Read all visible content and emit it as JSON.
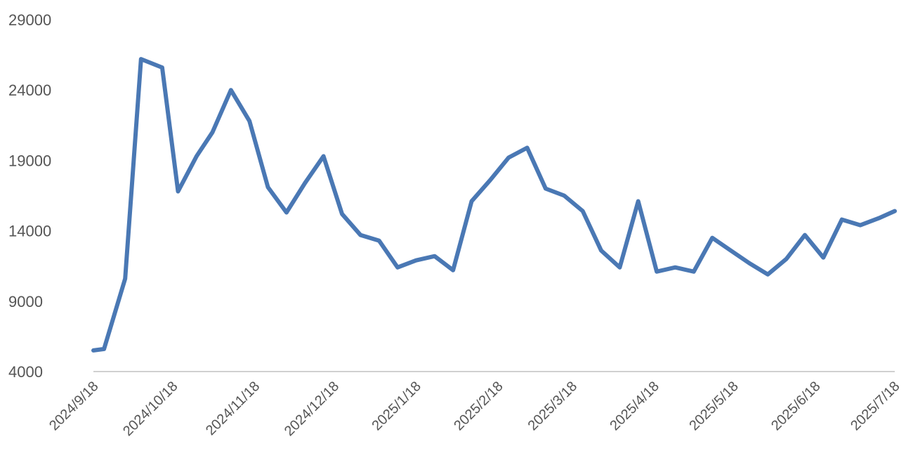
{
  "chart_data": {
    "type": "line",
    "title": "",
    "xlabel": "",
    "ylabel": "",
    "ylim": [
      4000,
      29000
    ],
    "yticks": [
      "4000",
      "9000",
      "14000",
      "19000",
      "24000",
      "29000"
    ],
    "xtick_labels": [
      "2024/9/18",
      "2024/10/18",
      "2024/11/18",
      "2024/12/18",
      "2025/1/18",
      "2025/2/18",
      "2025/3/18",
      "2025/4/18",
      "2025/5/18",
      "2025/6/18",
      "2025/7/18"
    ],
    "grid": false,
    "legend": "none",
    "line_color": "#4a78b4",
    "axis_color": "#d0d0d0",
    "series": [
      {
        "x": [
          "2024/9/18",
          "2024/9/22",
          "2024/9/30",
          "2024/10/6",
          "2024/10/14",
          "2024/10/20",
          "2024/10/27",
          "2024/11/2",
          "2024/11/9",
          "2024/11/16",
          "2024/11/23",
          "2024/11/30",
          "2024/12/7",
          "2024/12/14",
          "2024/12/21",
          "2024/12/28",
          "2025/1/4",
          "2025/1/11",
          "2025/1/18",
          "2025/1/25",
          "2025/2/1",
          "2025/2/8",
          "2025/2/15",
          "2025/2/22",
          "2025/3/1",
          "2025/3/8",
          "2025/3/15",
          "2025/3/22",
          "2025/3/29",
          "2025/4/5",
          "2025/4/12",
          "2025/4/19",
          "2025/4/26",
          "2025/5/3",
          "2025/5/10",
          "2025/5/17",
          "2025/5/24",
          "2025/5/31",
          "2025/6/7",
          "2025/6/14",
          "2025/6/21",
          "2025/6/28",
          "2025/7/5",
          "2025/7/12",
          "2025/7/18"
        ],
        "values": [
          5500,
          5600,
          10600,
          26200,
          25600,
          16800,
          19300,
          21000,
          24000,
          21800,
          17100,
          15300,
          17400,
          19300,
          15200,
          13700,
          13300,
          11400,
          11900,
          12200,
          11200,
          16100,
          17600,
          19200,
          19900,
          17000,
          16500,
          15400,
          12600,
          11400,
          16100,
          11100,
          11400,
          11100,
          13500,
          12600,
          11700,
          10900,
          12000,
          13700,
          12100,
          14800,
          14400,
          14900,
          15400
        ]
      }
    ]
  }
}
